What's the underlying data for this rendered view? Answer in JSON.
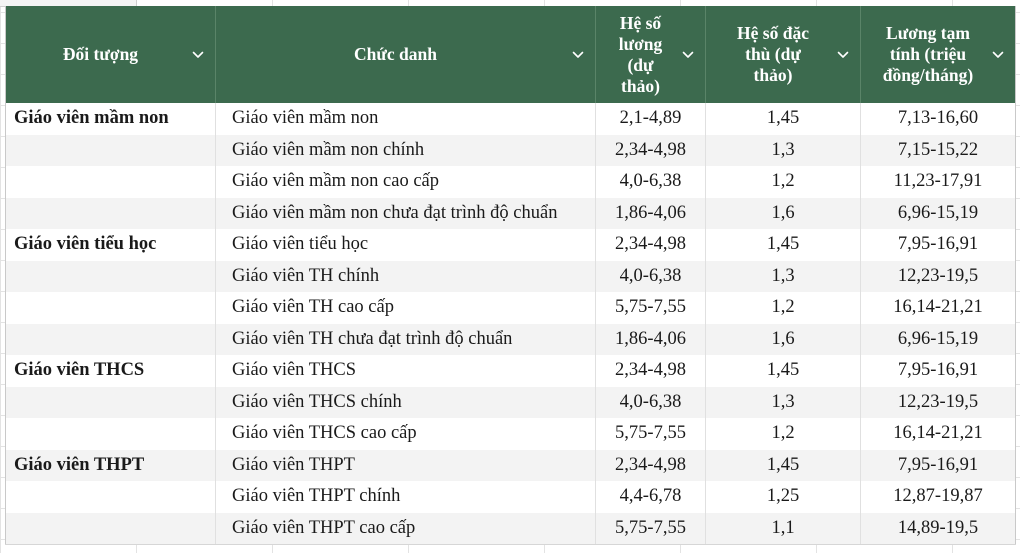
{
  "columns": [
    {
      "label": "Đối tượng",
      "lines": [
        "Đối tượng"
      ]
    },
    {
      "label": "Chức danh",
      "lines": [
        "Chức danh"
      ]
    },
    {
      "label": "Hệ số lương (dự thảo)",
      "lines": [
        "Hệ số",
        "lương",
        "(dự",
        "thảo)"
      ]
    },
    {
      "label": "Hệ số đặc thù (dự thảo)",
      "lines": [
        "Hệ số đặc",
        "thù (dự",
        "thảo)"
      ]
    },
    {
      "label": "Lương tạm tính (triệu đồng/tháng)",
      "lines": [
        "Lương tạm",
        "tính (triệu",
        "đồng/tháng)"
      ]
    }
  ],
  "header_icons": [
    "chevron-down-icon"
  ],
  "colors": {
    "header_bg": "#3c6a4e",
    "header_text": "#ffffff",
    "stripe": "#f3f3f3"
  },
  "rows": [
    {
      "group": "Giáo viên mầm non",
      "title": "Giáo viên mầm non",
      "coef": "2,1-4,89",
      "special": "1,45",
      "salary": "7,13-16,60"
    },
    {
      "group": "",
      "title": "Giáo viên mầm non chính",
      "coef": "2,34-4,98",
      "special": "1,3",
      "salary": "7,15-15,22"
    },
    {
      "group": "",
      "title": "Giáo viên mầm non cao cấp",
      "coef": "4,0-6,38",
      "special": "1,2",
      "salary": "11,23-17,91"
    },
    {
      "group": "",
      "title": "Giáo viên mầm non chưa đạt trình độ chuẩn",
      "coef": "1,86-4,06",
      "special": "1,6",
      "salary": "6,96-15,19"
    },
    {
      "group": "Giáo viên tiểu học",
      "title": "Giáo viên tiểu học",
      "coef": "2,34-4,98",
      "special": "1,45",
      "salary": "7,95-16,91"
    },
    {
      "group": "",
      "title": "Giáo viên TH chính",
      "coef": "4,0-6,38",
      "special": "1,3",
      "salary": "12,23-19,5"
    },
    {
      "group": "",
      "title": "Giáo viên TH cao cấp",
      "coef": "5,75-7,55",
      "special": "1,2",
      "salary": "16,14-21,21"
    },
    {
      "group": "",
      "title": "Giáo viên TH chưa đạt trình độ chuẩn",
      "coef": "1,86-4,06",
      "special": "1,6",
      "salary": "6,96-15,19"
    },
    {
      "group": "Giáo viên THCS",
      "title": "Giáo viên THCS",
      "coef": "2,34-4,98",
      "special": "1,45",
      "salary": "7,95-16,91"
    },
    {
      "group": "",
      "title": "Giáo viên THCS chính",
      "coef": "4,0-6,38",
      "special": "1,3",
      "salary": "12,23-19,5"
    },
    {
      "group": "",
      "title": "Giáo viên THCS cao cấp",
      "coef": "5,75-7,55",
      "special": "1,2",
      "salary": "16,14-21,21"
    },
    {
      "group": "Giáo viên THPT",
      "title": "Giáo viên THPT",
      "coef": "2,34-4,98",
      "special": "1,45",
      "salary": "7,95-16,91"
    },
    {
      "group": "",
      "title": "Giáo viên THPT chính",
      "coef": "4,4-6,78",
      "special": "1,25",
      "salary": "12,87-19,87"
    },
    {
      "group": "",
      "title": "Giáo viên THPT cao cấp",
      "coef": "5,75-7,55",
      "special": "1,1",
      "salary": "14,89-19,5"
    }
  ]
}
